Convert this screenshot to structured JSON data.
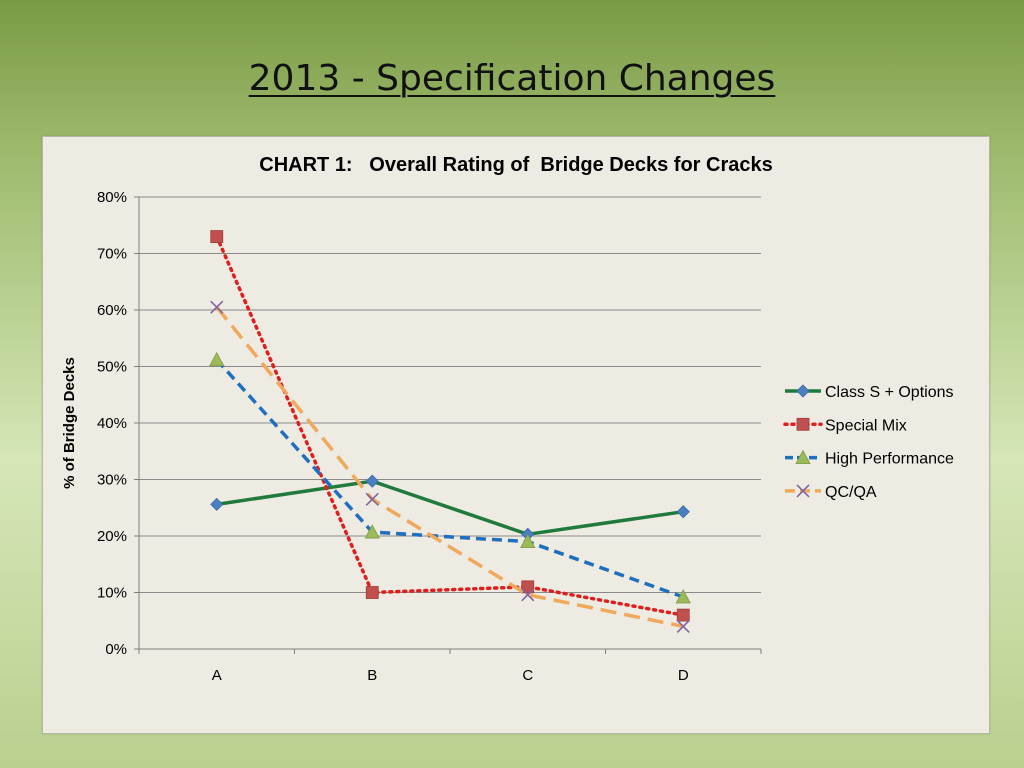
{
  "slide": {
    "title": "2013 - Specification Changes"
  },
  "chart_data": {
    "type": "line",
    "title": "CHART 1:   Overall Rating of  Bridge Decks for Cracks",
    "xlabel": "",
    "ylabel": "% of Bridge Decks",
    "categories": [
      "A",
      "B",
      "C",
      "D"
    ],
    "ylim": [
      0,
      80
    ],
    "yticks": [
      0,
      10,
      20,
      30,
      40,
      50,
      60,
      70,
      80
    ],
    "ytick_labels": [
      "0%",
      "10%",
      "20%",
      "30%",
      "40%",
      "50%",
      "60%",
      "70%",
      "80%"
    ],
    "grid": "horizontal",
    "legend_position": "right",
    "series": [
      {
        "name": "Class S + Options",
        "values": [
          25.6,
          29.7,
          20.3,
          24.3
        ],
        "color": "#1f7a3c",
        "dash": "solid",
        "marker": "diamond",
        "marker_color": "#4a7fc1"
      },
      {
        "name": "Special Mix",
        "values": [
          73.0,
          10.0,
          11.0,
          6.0
        ],
        "color": "#e01e1e",
        "dash": "dot",
        "marker": "square",
        "marker_color": "#c0504d"
      },
      {
        "name": "High Performance",
        "values": [
          51.2,
          20.7,
          19.0,
          9.2
        ],
        "color": "#1f6fbf",
        "dash": "dash",
        "marker": "triangle",
        "marker_color": "#9bbb59"
      },
      {
        "name": "QC/QA",
        "values": [
          60.5,
          26.5,
          9.6,
          4.0
        ],
        "color": "#f0a85a",
        "dash": "longdash",
        "marker": "x",
        "marker_color": "#8064a2"
      }
    ]
  }
}
